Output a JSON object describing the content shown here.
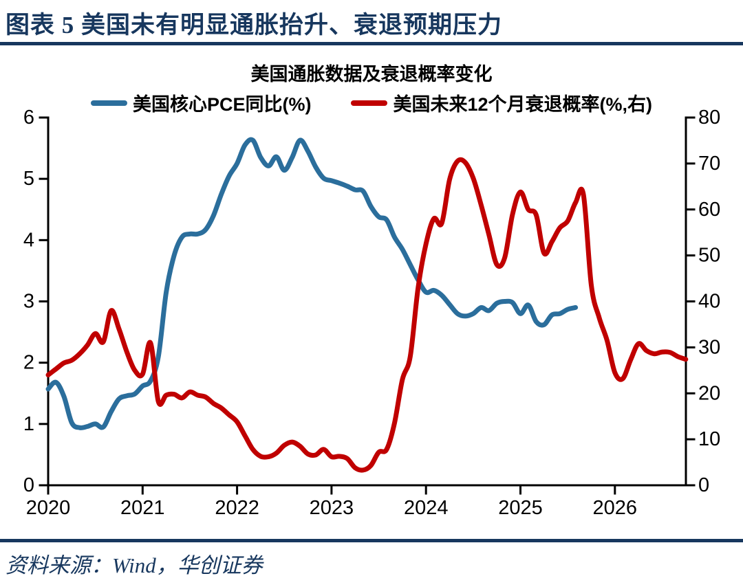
{
  "header": {
    "title": "图表 5  美国未有明显通胀抬升、衰退预期压力"
  },
  "footer": {
    "source": "资料来源：Wind，华创证券"
  },
  "colors": {
    "navy": "#17375E",
    "pce_blue": "#2B6E9C",
    "recession_red": "#C00000",
    "axis_black": "#000000",
    "background": "#FFFFFF"
  },
  "chart_data": {
    "type": "line",
    "title": "美国通胀数据及衰退概率变化",
    "legend_position": "top",
    "grid": "off",
    "x_axis": {
      "tick_labels": [
        "2020",
        "2021",
        "2022",
        "2023",
        "2024",
        "2025",
        "2026"
      ],
      "start": "2020-01",
      "end": "2026-10",
      "frequency": "monthly"
    },
    "left_axis": {
      "range": [
        0,
        6
      ],
      "ticks": [
        0,
        1,
        2,
        3,
        4,
        5,
        6
      ]
    },
    "right_axis": {
      "range": [
        0,
        80
      ],
      "ticks": [
        0,
        10,
        20,
        30,
        40,
        50,
        60,
        70,
        80
      ]
    },
    "series": [
      {
        "name": "美国核心PCE同比(%)",
        "axis": "left",
        "color": "#2B6E9C",
        "start": "2020-01",
        "frequency": "monthly",
        "values": [
          1.57,
          1.68,
          1.45,
          1.02,
          0.94,
          0.96,
          1.0,
          0.95,
          1.2,
          1.41,
          1.46,
          1.49,
          1.62,
          1.7,
          2.1,
          3.15,
          3.75,
          4.05,
          4.1,
          4.1,
          4.17,
          4.4,
          4.75,
          5.05,
          5.25,
          5.55,
          5.63,
          5.35,
          5.21,
          5.36,
          5.14,
          5.35,
          5.63,
          5.45,
          5.19,
          5.01,
          4.97,
          4.93,
          4.88,
          4.82,
          4.8,
          4.55,
          4.38,
          4.33,
          4.05,
          3.85,
          3.6,
          3.35,
          3.15,
          3.18,
          3.1,
          2.95,
          2.8,
          2.76,
          2.8,
          2.9,
          2.85,
          2.97,
          3.0,
          2.98,
          2.8,
          2.94,
          2.67,
          2.62,
          2.78,
          2.8,
          2.87,
          2.9
        ]
      },
      {
        "name": "美国未来12个月衰退概率(%,右)",
        "axis": "right",
        "color": "#C00000",
        "start": "2020-01",
        "frequency": "monthly",
        "values": [
          24.0,
          25.3,
          26.6,
          27.2,
          28.6,
          30.5,
          33.0,
          31.2,
          38.0,
          34.0,
          29.0,
          25.0,
          24.2,
          31.0,
          18.2,
          19.6,
          19.8,
          19.0,
          20.3,
          19.6,
          19.2,
          17.8,
          16.8,
          15.3,
          13.8,
          10.8,
          7.8,
          6.3,
          6.2,
          7.0,
          8.7,
          9.4,
          8.5,
          6.8,
          6.6,
          7.8,
          6.2,
          6.3,
          5.8,
          3.8,
          3.3,
          4.3,
          7.2,
          7.8,
          13.5,
          23.0,
          28.0,
          43.0,
          52.5,
          58.0,
          57.0,
          66.5,
          70.5,
          70.2,
          66.8,
          61.0,
          54.5,
          48.0,
          49.5,
          59.0,
          63.8,
          60.0,
          58.8,
          50.5,
          53.0,
          56.0,
          57.5,
          61.5,
          63.3,
          43.5,
          36.5,
          31.5,
          24.5,
          23.2,
          27.3,
          30.8,
          29.3,
          28.6,
          29.0,
          28.9,
          28.0,
          27.4
        ]
      }
    ]
  }
}
